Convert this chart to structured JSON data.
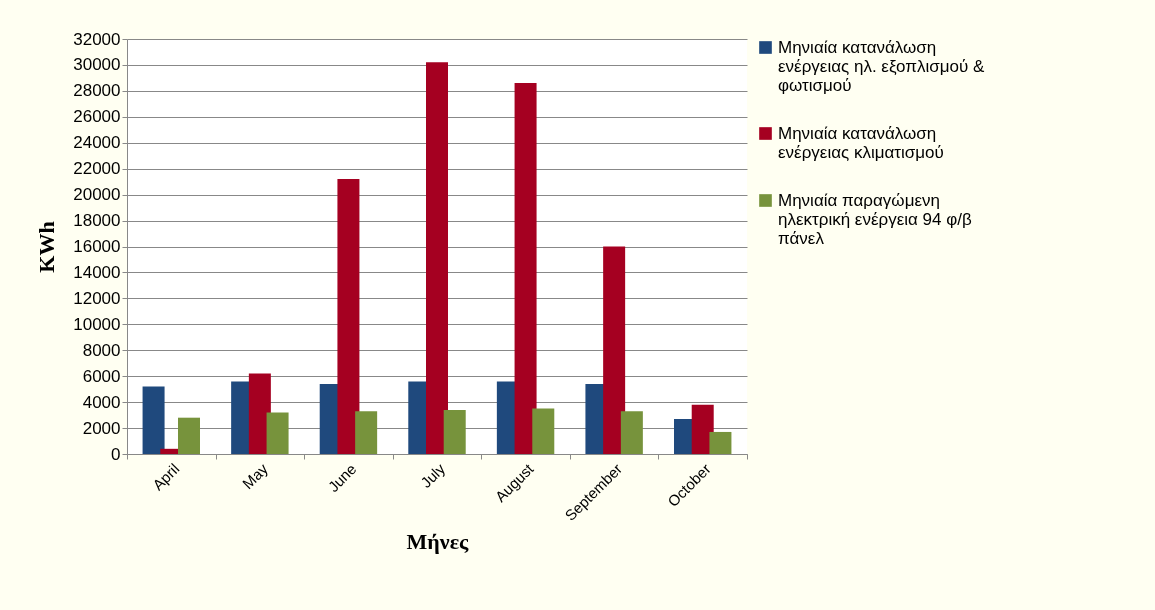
{
  "chart_data": {
    "type": "bar",
    "xlabel": "Μήνες",
    "ylabel": "KWh",
    "categories": [
      "April",
      "May",
      "June",
      "July",
      "August",
      "September",
      "October"
    ],
    "series": [
      {
        "name": "Μηνιαία κατανάλωση ενέργειας ηλ. εξοπλισμού & φωτισμού",
        "color": "#1f497d",
        "values": [
          5200,
          5600,
          5400,
          5600,
          5600,
          5400,
          2700
        ]
      },
      {
        "name": "Μηνιαία κατανάλωση ενέργειας κλιματισμού",
        "color": "#a50021",
        "values": [
          400,
          6200,
          21200,
          30200,
          28600,
          16000,
          3800
        ]
      },
      {
        "name": "Μηνιαία παραγώμενη ηλεκτρική ενέργεια 94 φ/β πάνελ",
        "color": "#77933c",
        "values": [
          2800,
          3200,
          3300,
          3400,
          3500,
          3300,
          1700
        ]
      }
    ],
    "ylim": [
      0,
      32000
    ],
    "yticks": [
      0,
      2000,
      4000,
      6000,
      8000,
      10000,
      12000,
      14000,
      16000,
      18000,
      20000,
      22000,
      24000,
      26000,
      28000,
      30000,
      32000
    ],
    "grid": "y",
    "legend": "right"
  }
}
